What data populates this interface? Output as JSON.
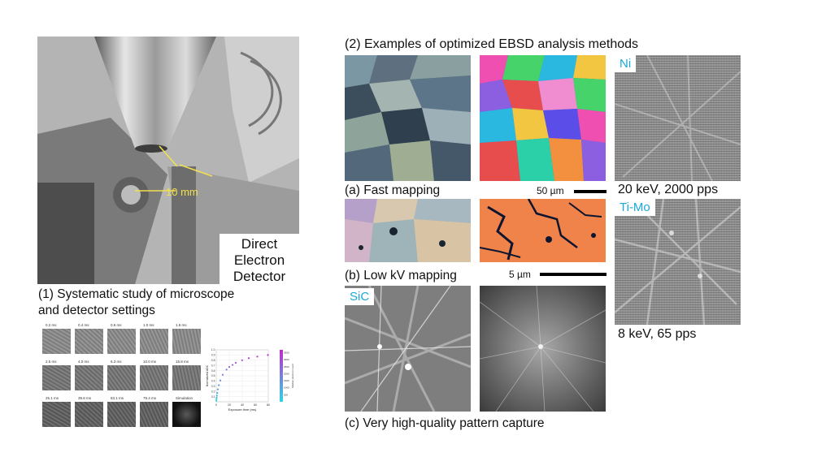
{
  "panel1": {
    "title_line1": "(1) Systematic study of microscope",
    "title_line2": "and detector settings",
    "distance_label": "10 mm",
    "detector_label_line1": "Direct",
    "detector_label_line2": "Electron",
    "detector_label_line3": "Detector",
    "exposure_labels": [
      "0.2 ms",
      "0.4 ms",
      "0.6 ms",
      "1.0 ms",
      "1.6 ms",
      "2.5 ms",
      "4.0 ms",
      "6.3 ms",
      "10.0 ms",
      "15.8 ms",
      "25.1 ms",
      "39.8 ms",
      "63.1 ms",
      "79.4 ms",
      "Simulation"
    ]
  },
  "panel2": {
    "title": "(2) Examples of optimized EBSD analysis methods",
    "fast_mapping": "(a) Fast mapping",
    "scale_50": "50 µm",
    "low_kv": "(b) Low kV mapping",
    "scale_5": "5 µm",
    "high_quality": "(c) Very high-quality pattern capture",
    "ni_label": "Ni",
    "ni_caption": "20 keV, 2000 pps",
    "timo_label": "Ti-Mo",
    "timo_caption": "8 keV, 65 pps",
    "sic_label": "SiC"
  },
  "chart_data": {
    "type": "scatter",
    "title": "",
    "xlabel": "Exposure time (ms)",
    "ylabel": "Normalized ADC",
    "xlim": [
      0,
      80
    ],
    "ylim": [
      0,
      1.0
    ],
    "x_ticks": [
      0,
      20,
      40,
      60,
      80
    ],
    "y_ticks": [
      0.1,
      0.2,
      0.3,
      0.4,
      0.5,
      0.6,
      0.7,
      0.8,
      0.9,
      1.0
    ],
    "colorbar_label": "Median electron count",
    "colorbar_ticks": [
      500,
      1000,
      1500,
      2000,
      2500,
      3000,
      3500
    ],
    "colors": {
      "low": "#2fd4e6",
      "high": "#c02cc8"
    },
    "x": [
      0.2,
      0.4,
      0.6,
      1.0,
      1.6,
      2.5,
      4.0,
      6.3,
      10.0,
      15.8,
      20,
      25.1,
      30,
      39.8,
      50,
      63.1,
      79.4
    ],
    "y": [
      0.02,
      0.05,
      0.08,
      0.12,
      0.17,
      0.24,
      0.32,
      0.41,
      0.52,
      0.62,
      0.67,
      0.71,
      0.75,
      0.8,
      0.84,
      0.87,
      0.9
    ]
  }
}
